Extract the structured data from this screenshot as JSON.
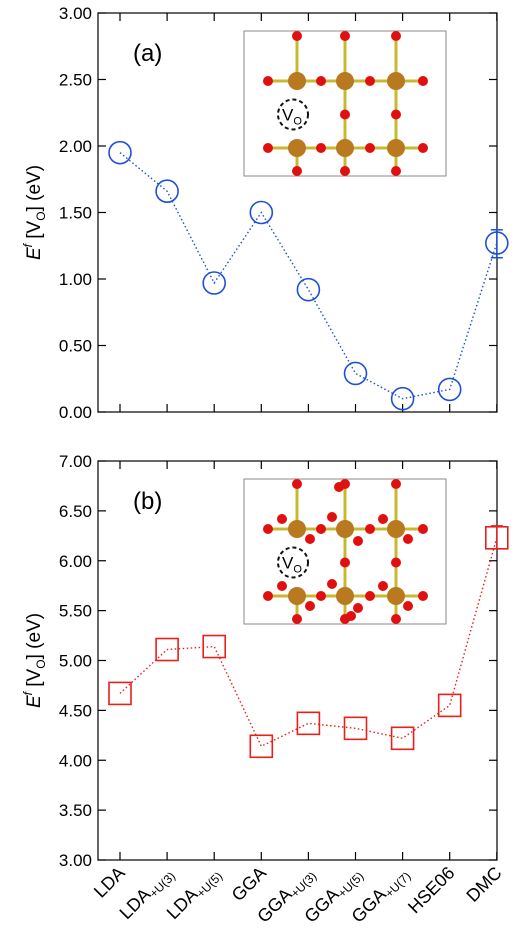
{
  "chart_data": [
    {
      "type": "scatter",
      "panel_label": "(a)",
      "ylabel": {
        "main": "E",
        "sup": "f",
        "bracket_open": " [V",
        "sub": "O",
        "bracket_close": "] (eV)"
      },
      "ylim": [
        0.0,
        3.0
      ],
      "yticks": [
        "0.00",
        "0.50",
        "1.00",
        "1.50",
        "2.00",
        "2.50",
        "3.00"
      ],
      "marker": "circle",
      "color": "#1f4fd6",
      "x": [
        "LDA",
        "LDA+U(3)",
        "LDA+U(5)",
        "GGA",
        "GGA+U(3)",
        "GGA+U(5)",
        "GGA+U(7)",
        "HSE06",
        "DMC"
      ],
      "values": [
        1.95,
        1.66,
        0.97,
        1.5,
        0.92,
        0.29,
        0.1,
        0.17,
        1.27
      ],
      "error": {
        "index": 8,
        "upper": 1.37,
        "lower": 1.16
      },
      "inset": {
        "vacancy_label": "V",
        "vacancy_sub": "O"
      }
    },
    {
      "type": "scatter",
      "panel_label": "(b)",
      "ylabel": {
        "main": "E",
        "sup": "f",
        "bracket_open": " [V",
        "sub": "O",
        "bracket_close": "] (eV)"
      },
      "ylim": [
        3.0,
        7.0
      ],
      "yticks": [
        "3.00",
        "3.50",
        "4.00",
        "4.50",
        "5.00",
        "5.50",
        "6.00",
        "6.50",
        "7.00"
      ],
      "marker": "square",
      "color": "#e8201b",
      "x": [
        "LDA",
        "LDA+U(3)",
        "LDA+U(5)",
        "GGA",
        "GGA+U(3)",
        "GGA+U(5)",
        "GGA+U(7)",
        "HSE06",
        "DMC"
      ],
      "values": [
        4.67,
        5.11,
        5.14,
        4.14,
        4.37,
        4.32,
        4.22,
        4.55,
        6.23
      ],
      "error": {
        "index": 8,
        "upper": 6.35,
        "lower": 6.12
      },
      "inset": {
        "vacancy_label": "V",
        "vacancy_sub": "O"
      }
    }
  ],
  "x_tick_labels": [
    {
      "base": "LDA",
      "sub": ""
    },
    {
      "base": "LDA",
      "sub": "+U(3)"
    },
    {
      "base": "LDA",
      "sub": "+U(5)"
    },
    {
      "base": "GGA",
      "sub": ""
    },
    {
      "base": "GGA",
      "sub": "+U(3)"
    },
    {
      "base": "GGA",
      "sub": "+U(5)"
    },
    {
      "base": "GGA",
      "sub": "+U(7)"
    },
    {
      "base": "HSE06",
      "sub": ""
    },
    {
      "base": "DMC",
      "sub": ""
    }
  ],
  "colors": {
    "atom_metal": "#b8791f",
    "atom_oxygen": "#e01010",
    "bond": "#c8b830"
  }
}
